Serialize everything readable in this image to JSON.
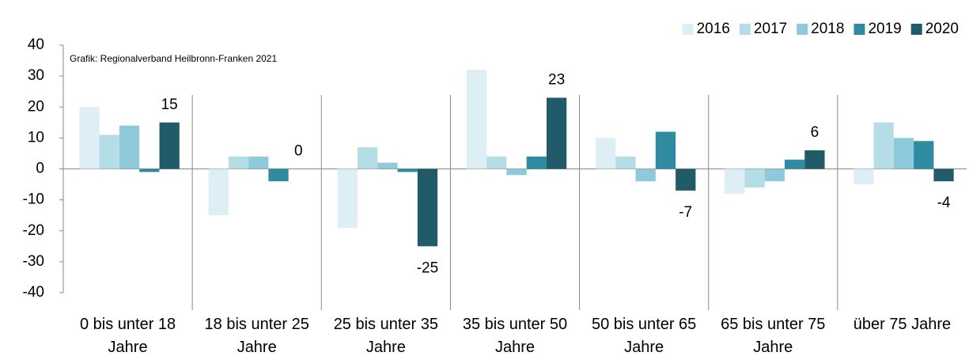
{
  "chart_data": {
    "type": "bar",
    "annotation": "Grafik: Regionalverband Heilbronn-Franken 2021",
    "categories": [
      "0 bis unter 18 Jahre",
      "18 bis unter 25 Jahre",
      "25 bis unter 35 Jahre",
      "35 bis unter 50 Jahre",
      "50 bis unter 65 Jahre",
      "65 bis unter 75 Jahre",
      "über 75 Jahre"
    ],
    "series": [
      {
        "name": "2016",
        "color": "#ddeef4",
        "values": [
          20,
          -15,
          -19,
          32,
          10,
          -8,
          -5
        ]
      },
      {
        "name": "2017",
        "color": "#b5dde6",
        "values": [
          11,
          4,
          7,
          4,
          4,
          -6,
          15
        ]
      },
      {
        "name": "2018",
        "color": "#8fcadb",
        "values": [
          14,
          4,
          2,
          -2,
          -4,
          -4,
          10
        ]
      },
      {
        "name": "2019",
        "color": "#2f8ba0",
        "values": [
          -1,
          -4,
          -1,
          4,
          12,
          3,
          9
        ]
      },
      {
        "name": "2020",
        "color": "#215b6a",
        "values": [
          15,
          0,
          -25,
          23,
          -7,
          6,
          -4
        ],
        "data_labels": true
      }
    ],
    "ylim": [
      -40,
      40
    ],
    "yticks": [
      -40,
      -30,
      -20,
      -10,
      0,
      10,
      20,
      30,
      40
    ],
    "legend": "top-right"
  }
}
